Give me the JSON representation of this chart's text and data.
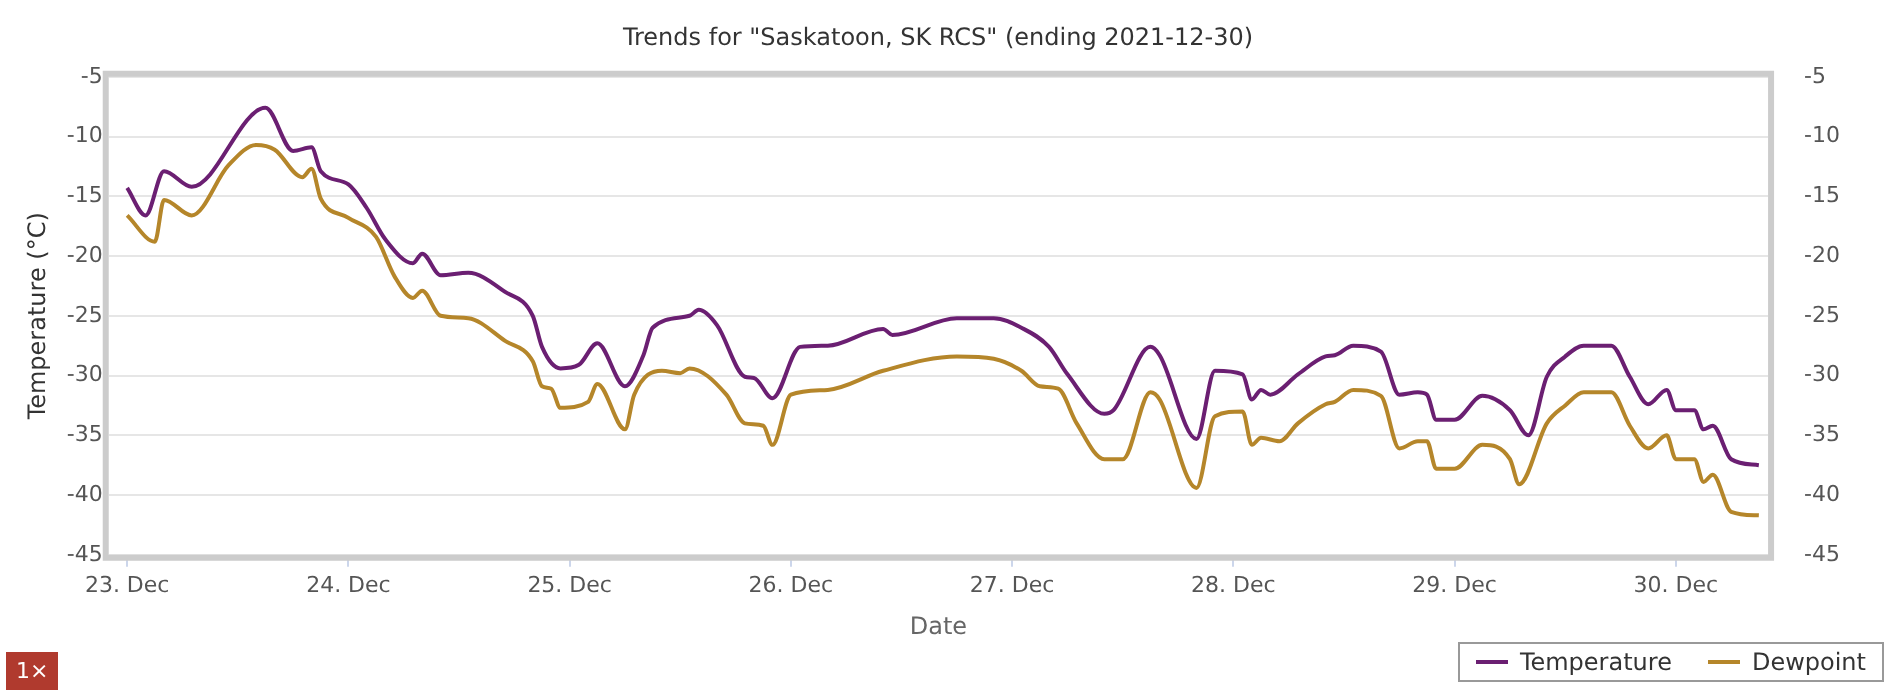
{
  "chart_data": {
    "type": "line",
    "title": "Trends for \"Saskatoon, SK RCS\" (ending 2021-12-30)",
    "xlabel": "Date",
    "ylabel": "Temperature (°C)",
    "xlim": [
      "2021-12-22T22:00",
      "2021-12-30T10:00"
    ],
    "xticks": [
      {
        "value": "2021-12-23",
        "label": "23. Dec"
      },
      {
        "value": "2021-12-24",
        "label": "24. Dec"
      },
      {
        "value": "2021-12-25",
        "label": "25. Dec"
      },
      {
        "value": "2021-12-26",
        "label": "26. Dec"
      },
      {
        "value": "2021-12-27",
        "label": "27. Dec"
      },
      {
        "value": "2021-12-28",
        "label": "28. Dec"
      },
      {
        "value": "2021-12-29",
        "label": "29. Dec"
      },
      {
        "value": "2021-12-30",
        "label": "30. Dec"
      }
    ],
    "ylim": [
      -45,
      -5
    ],
    "yticks": [
      -45,
      -40,
      -35,
      -30,
      -25,
      -20,
      -15,
      -10,
      -5
    ],
    "y2lim": [
      -45,
      -5
    ],
    "y2ticks": [
      -45,
      -40,
      -35,
      -30,
      -25,
      -20,
      -15,
      -10,
      -5
    ],
    "grid": "y",
    "legend": "bottom right",
    "marker": "none",
    "line_style": "solid",
    "annotations": [
      "1×"
    ],
    "series": [
      {
        "name": "Temperature",
        "color": "#6b1f72",
        "x": [
          "2021-12-23T00:00",
          "2021-12-23T02:00",
          "2021-12-23T04:00",
          "2021-12-23T07:00",
          "2021-12-23T15:00",
          "2021-12-23T18:00",
          "2021-12-23T20:00",
          "2021-12-23T21:00",
          "2021-12-24T00:00",
          "2021-12-24T02:00",
          "2021-12-24T04:00",
          "2021-12-24T07:00",
          "2021-12-24T08:00",
          "2021-12-24T10:00",
          "2021-12-24T13:00",
          "2021-12-24T17:00",
          "2021-12-24T20:00",
          "2021-12-24T21:00",
          "2021-12-24T23:00",
          "2021-12-25T01:00",
          "2021-12-25T03:00",
          "2021-12-25T06:00",
          "2021-12-25T08:00",
          "2021-12-25T09:00",
          "2021-12-25T13:00",
          "2021-12-25T14:00",
          "2021-12-25T16:00",
          "2021-12-25T19:00",
          "2021-12-25T20:00",
          "2021-12-25T22:00",
          "2021-12-26T01:00",
          "2021-12-26T04:00",
          "2021-12-26T10:00",
          "2021-12-26T11:00",
          "2021-12-26T18:00",
          "2021-12-26T22:00",
          "2021-12-27T01:00",
          "2021-12-27T04:00",
          "2021-12-27T06:00",
          "2021-12-27T10:00",
          "2021-12-27T11:00",
          "2021-12-27T15:00",
          "2021-12-27T16:00",
          "2021-12-27T20:00",
          "2021-12-27T22:00",
          "2021-12-28T01:00",
          "2021-12-28T02:00",
          "2021-12-28T03:00",
          "2021-12-28T04:00",
          "2021-12-28T07:00",
          "2021-12-28T10:00",
          "2021-12-28T11:00",
          "2021-12-28T13:00",
          "2021-12-28T16:00",
          "2021-12-28T18:00",
          "2021-12-28T20:00",
          "2021-12-28T21:00",
          "2021-12-28T22:00",
          "2021-12-29T00:00",
          "2021-12-29T03:00",
          "2021-12-29T06:00",
          "2021-12-29T08:00",
          "2021-12-29T10:00",
          "2021-12-29T12:00",
          "2021-12-29T14:00",
          "2021-12-29T17:00",
          "2021-12-29T19:00",
          "2021-12-29T21:00",
          "2021-12-29T23:00",
          "2021-12-30T00:00",
          "2021-12-30T02:00",
          "2021-12-30T03:00",
          "2021-12-30T04:00",
          "2021-12-30T06:00",
          "2021-12-30T09:00"
        ],
        "values": [
          -14.3,
          -16.6,
          -12.9,
          -14.2,
          -7.6,
          -11.2,
          -10.9,
          -12.9,
          -14.0,
          -16.0,
          -18.6,
          -20.6,
          -19.8,
          -21.6,
          -21.4,
          -23.0,
          -25.0,
          -27.6,
          -29.4,
          -29.1,
          -27.3,
          -30.9,
          -28.3,
          -26.0,
          -25.0,
          -24.5,
          -25.8,
          -30.1,
          -30.2,
          -31.9,
          -27.6,
          -27.5,
          -26.1,
          -26.6,
          -25.2,
          -25.2,
          -26.0,
          -27.6,
          -29.9,
          -33.2,
          -32.9,
          -27.6,
          -28.3,
          -35.3,
          -29.6,
          -29.9,
          -32.0,
          -31.2,
          -31.6,
          -29.9,
          -28.4,
          -28.3,
          -27.5,
          -28.0,
          -31.6,
          -31.4,
          -31.6,
          -33.7,
          -33.7,
          -31.7,
          -32.9,
          -35.0,
          -30.1,
          -28.4,
          -27.5,
          -27.5,
          -30.1,
          -32.4,
          -31.2,
          -32.9,
          -32.9,
          -34.5,
          -34.2,
          -37.0,
          -37.5
        ]
      },
      {
        "name": "Dewpoint",
        "color": "#b5862a",
        "x": [
          "2021-12-23T00:00",
          "2021-12-23T03:00",
          "2021-12-23T04:00",
          "2021-12-23T07:00",
          "2021-12-23T11:00",
          "2021-12-23T14:00",
          "2021-12-23T16:00",
          "2021-12-23T19:00",
          "2021-12-23T20:00",
          "2021-12-23T21:00",
          "2021-12-24T00:00",
          "2021-12-24T03:00",
          "2021-12-24T05:00",
          "2021-12-24T07:00",
          "2021-12-24T08:00",
          "2021-12-24T10:00",
          "2021-12-24T13:00",
          "2021-12-24T17:00",
          "2021-12-24T20:00",
          "2021-12-24T21:00",
          "2021-12-24T22:00",
          "2021-12-24T23:00",
          "2021-12-25T02:00",
          "2021-12-25T03:00",
          "2021-12-25T06:00",
          "2021-12-25T07:00",
          "2021-12-25T10:00",
          "2021-12-25T12:00",
          "2021-12-25T13:00",
          "2021-12-25T17:00",
          "2021-12-25T19:00",
          "2021-12-25T21:00",
          "2021-12-25T22:00",
          "2021-12-26T00:00",
          "2021-12-26T04:00",
          "2021-12-26T10:00",
          "2021-12-26T18:00",
          "2021-12-26T22:00",
          "2021-12-27T01:00",
          "2021-12-27T03:00",
          "2021-12-27T05:00",
          "2021-12-27T07:00",
          "2021-12-27T10:00",
          "2021-12-27T12:00",
          "2021-12-27T15:00",
          "2021-12-27T16:00",
          "2021-12-27T20:00",
          "2021-12-27T22:00",
          "2021-12-28T01:00",
          "2021-12-28T02:00",
          "2021-12-28T03:00",
          "2021-12-28T05:00",
          "2021-12-28T07:00",
          "2021-12-28T10:00",
          "2021-12-28T11:00",
          "2021-12-28T13:00",
          "2021-12-28T16:00",
          "2021-12-28T18:00",
          "2021-12-28T20:00",
          "2021-12-28T21:00",
          "2021-12-28T22:00",
          "2021-12-29T00:00",
          "2021-12-29T03:00",
          "2021-12-29T06:00",
          "2021-12-29T07:00",
          "2021-12-29T10:00",
          "2021-12-29T12:00",
          "2021-12-29T14:00",
          "2021-12-29T17:00",
          "2021-12-29T19:00",
          "2021-12-29T21:00",
          "2021-12-29T23:00",
          "2021-12-30T00:00",
          "2021-12-30T02:00",
          "2021-12-30T03:00",
          "2021-12-30T04:00",
          "2021-12-30T06:00",
          "2021-12-30T09:00"
        ],
        "values": [
          -16.6,
          -18.8,
          -15.3,
          -16.6,
          -12.4,
          -10.7,
          -11.1,
          -13.4,
          -12.7,
          -15.2,
          -16.8,
          -18.4,
          -21.7,
          -23.5,
          -22.9,
          -25.0,
          -25.2,
          -27.1,
          -28.8,
          -30.9,
          -31.1,
          -32.7,
          -32.2,
          -30.7,
          -34.5,
          -31.6,
          -29.6,
          -29.8,
          -29.4,
          -31.6,
          -34.0,
          -34.2,
          -35.8,
          -31.6,
          -31.2,
          -29.6,
          -28.4,
          -28.6,
          -29.6,
          -30.9,
          -31.1,
          -34.0,
          -37.0,
          -37.0,
          -31.4,
          -32.0,
          -39.4,
          -33.4,
          -33.0,
          -35.8,
          -35.2,
          -35.5,
          -34.0,
          -32.4,
          -32.2,
          -31.2,
          -31.7,
          -36.1,
          -35.5,
          -35.5,
          -37.8,
          -37.8,
          -35.8,
          -37.0,
          -39.1,
          -34.0,
          -32.5,
          -31.4,
          -31.4,
          -34.2,
          -36.1,
          -35.0,
          -37.0,
          -37.0,
          -38.9,
          -38.3,
          -41.4,
          -41.7
        ]
      }
    ]
  }
}
